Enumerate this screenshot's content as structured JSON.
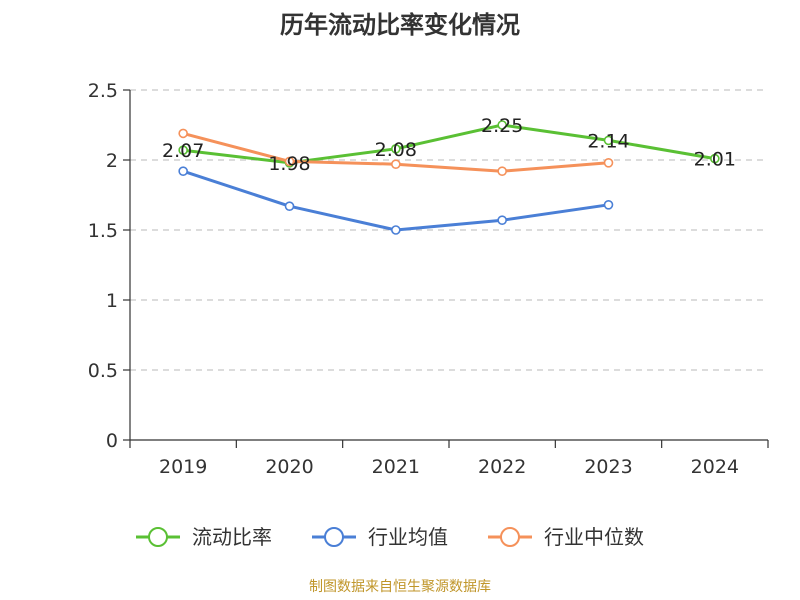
{
  "chart_data": {
    "type": "line",
    "title": "历年流动比率变化情况",
    "categories": [
      "2019",
      "2020",
      "2021",
      "2022",
      "2023",
      "2024"
    ],
    "ylim": [
      0,
      2.5
    ],
    "yticks": [
      0,
      0.5,
      1,
      1.5,
      2,
      2.5
    ],
    "ytick_labels": [
      "0",
      "0.5",
      "1",
      "1.5",
      "2",
      "2.5"
    ],
    "grid": true,
    "legend_position": "bottom",
    "series": [
      {
        "name": "流动比率",
        "color": "#5ac034",
        "values": [
          2.07,
          1.98,
          2.08,
          2.25,
          2.14,
          2.01
        ],
        "labels": [
          "2.07",
          "1.98",
          "2.08",
          "2.25",
          "2.14",
          "2.01"
        ]
      },
      {
        "name": "行业均值",
        "color": "#4a7fd6",
        "values": [
          1.92,
          1.67,
          1.5,
          1.57,
          1.68,
          null
        ]
      },
      {
        "name": "行业中位数",
        "color": "#f5915a",
        "values": [
          2.19,
          1.99,
          1.97,
          1.92,
          1.98,
          null
        ]
      }
    ],
    "source": "制图数据来自恒生聚源数据库"
  }
}
